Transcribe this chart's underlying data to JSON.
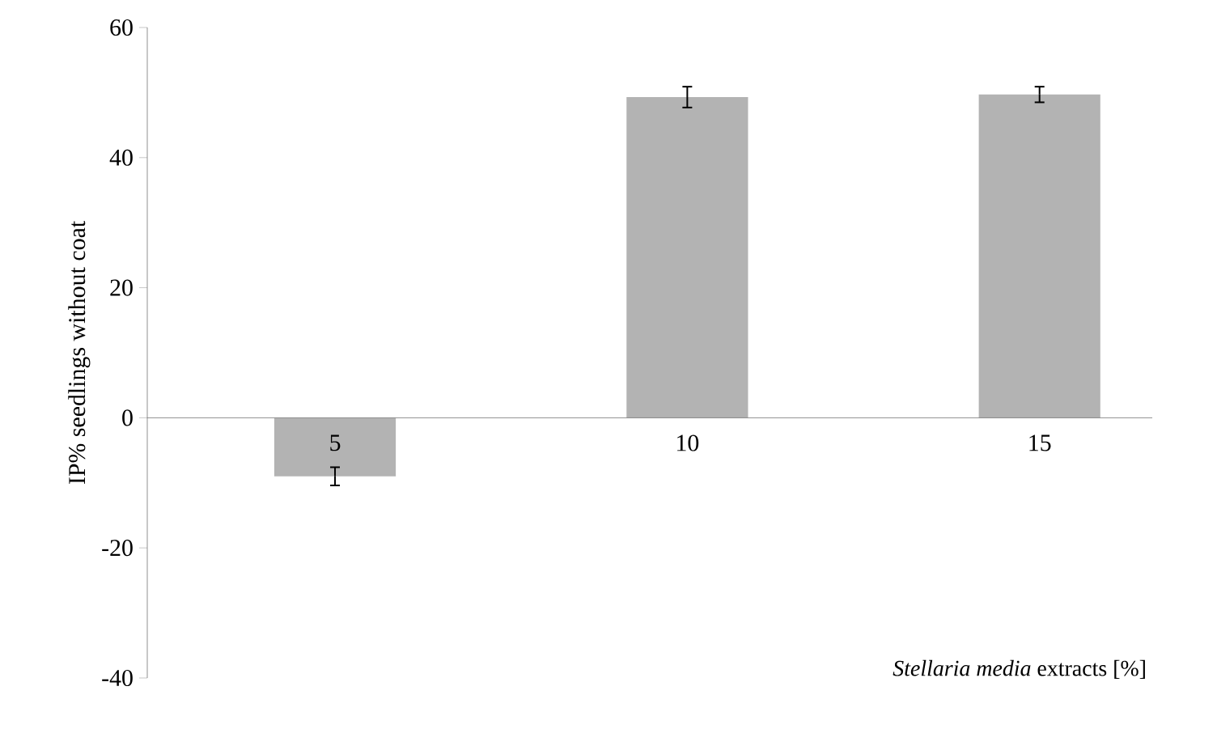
{
  "chart_data": {
    "type": "bar",
    "ylabel": "IP% seedlings  without  coat",
    "xlabel": "*Stellaria media* extracts  [%]",
    "categories": [
      "5",
      "10",
      "15"
    ],
    "values": [
      -9.0,
      49.3,
      49.7
    ],
    "errors": [
      1.4,
      1.6,
      1.2
    ],
    "color": "#b3b3b3",
    "ylim": [
      -40,
      60
    ],
    "yticks": [
      -40,
      -20,
      0,
      20,
      40,
      60
    ],
    "grid": false
  }
}
